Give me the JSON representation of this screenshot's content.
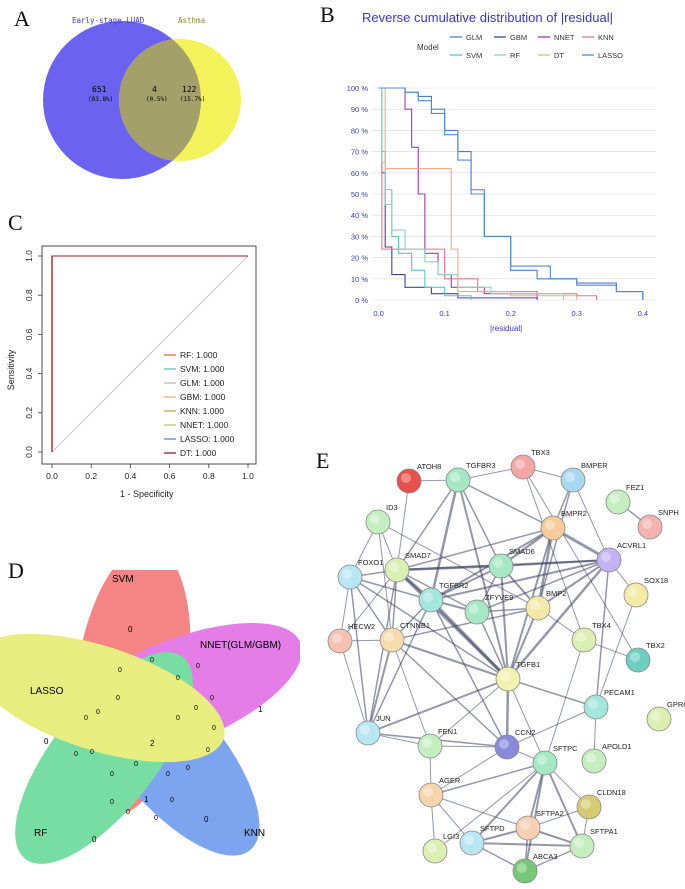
{
  "panel_labels": {
    "a": "A",
    "b": "B",
    "c": "C",
    "d": "D",
    "e": "E"
  },
  "colors": {
    "venn_left": "#6b63f0",
    "venn_right": "#f4f25a",
    "venn_overlap": "#a3a06a",
    "glm": "#4d7fd1",
    "gbm": "#4343a8",
    "nnet": "#a23caf",
    "knn": "#e6758f",
    "svm": "#5ec6c2",
    "rf": "#88d7b8",
    "dt": "#f4a98a",
    "lasso": "#4c8ad8",
    "roc_line": "#c0392b"
  },
  "venn2": {
    "left_title": "Early-stage LUAD",
    "right_title": "Asthma",
    "left_count": "651",
    "left_pct": "(83.8%)",
    "overlap_count": "4",
    "overlap_pct": "(0.5%)",
    "right_count": "122",
    "right_pct": "(15.7%)"
  },
  "chart_data": [
    {
      "id": "reverse_cumulative",
      "type": "line",
      "title": "Reverse cumulative distribution of |residual|",
      "xlabel": "|residual|",
      "ylabel": "",
      "legend_title": "Model",
      "legend": [
        "GLM",
        "GBM",
        "NNET",
        "KNN",
        "SVM",
        "RF",
        "DT",
        "LASSO"
      ],
      "x_ticks": [
        "0.0",
        "0.1",
        "0.2",
        "0.3",
        "0.4"
      ],
      "y_ticks": [
        "0 %",
        "10 %",
        "20 %",
        "30 %",
        "40 %",
        "50 %",
        "60 %",
        "70 %",
        "80 %",
        "90 %",
        "100 %"
      ],
      "xlim": [
        -0.01,
        0.42
      ],
      "ylim": [
        0,
        100
      ],
      "series": [
        {
          "name": "GLM",
          "x": [
            0,
            0.02,
            0.04,
            0.06,
            0.08,
            0.1,
            0.12,
            0.14,
            0.16,
            0.2,
            0.24,
            0.3,
            0.36,
            0.4
          ],
          "y": [
            100,
            100,
            98,
            96,
            90,
            80,
            70,
            52,
            30,
            14,
            10,
            8,
            4,
            0
          ]
        },
        {
          "name": "GBM",
          "x": [
            0,
            0.005,
            0.01,
            0.02,
            0.04,
            0.08,
            0.12,
            0.24
          ],
          "y": [
            100,
            60,
            25,
            12,
            6,
            3,
            1,
            0
          ]
        },
        {
          "name": "NNET",
          "x": [
            0,
            0.03,
            0.04,
            0.05,
            0.06,
            0.07,
            0.09,
            0.11,
            0.16,
            0.24
          ],
          "y": [
            100,
            100,
            90,
            72,
            50,
            22,
            12,
            6,
            3,
            0
          ]
        },
        {
          "name": "KNN",
          "x": [
            0,
            0.005,
            0.01,
            0.1,
            0.15,
            0.24,
            0.3,
            0.33
          ],
          "y": [
            100,
            24,
            24,
            10,
            4,
            3,
            2,
            0
          ]
        },
        {
          "name": "SVM",
          "x": [
            0,
            0.005,
            0.01,
            0.02,
            0.03,
            0.05,
            0.07,
            0.1,
            0.14
          ],
          "y": [
            100,
            70,
            52,
            30,
            22,
            14,
            6,
            2,
            0
          ]
        },
        {
          "name": "RF",
          "x": [
            0,
            0.005,
            0.01,
            0.02,
            0.04,
            0.07,
            0.09,
            0.12,
            0.17,
            0.28
          ],
          "y": [
            100,
            65,
            45,
            33,
            24,
            18,
            12,
            6,
            3,
            0
          ]
        },
        {
          "name": "DT",
          "x": [
            0,
            0.01,
            0.1,
            0.11,
            0.12,
            0.2,
            0.3
          ],
          "y": [
            100,
            62,
            62,
            24,
            4,
            2,
            0
          ]
        },
        {
          "name": "LASSO",
          "x": [
            0,
            0.02,
            0.04,
            0.06,
            0.08,
            0.1,
            0.12,
            0.14,
            0.16,
            0.2,
            0.26,
            0.3,
            0.36,
            0.4
          ],
          "y": [
            100,
            100,
            98,
            94,
            88,
            78,
            66,
            50,
            30,
            16,
            10,
            7,
            4,
            0
          ]
        }
      ]
    },
    {
      "id": "roc",
      "type": "line",
      "title": "",
      "xlabel": "1 - Specificity",
      "ylabel": "Sensitivity",
      "x_ticks": [
        "0.0",
        "0.2",
        "0.4",
        "0.6",
        "0.8",
        "1.0"
      ],
      "y_ticks": [
        "0.0",
        "0.2",
        "0.4",
        "0.6",
        "0.8",
        "1.0"
      ],
      "xlim": [
        0,
        1
      ],
      "ylim": [
        0,
        1
      ],
      "legend": [
        "RF: 1.000",
        "SVM: 1.000",
        "GLM: 1.000",
        "GBM: 1.000",
        "KNN: 1.000",
        "NNET: 1.000",
        "LASSO: 1.000",
        "DT: 1.000"
      ],
      "series": [
        {
          "name": "RF",
          "auc": 1.0,
          "x": [
            0,
            0,
            1
          ],
          "y": [
            0,
            1,
            1
          ]
        },
        {
          "name": "SVM",
          "auc": 1.0,
          "x": [
            0,
            0,
            1
          ],
          "y": [
            0,
            1,
            1
          ]
        },
        {
          "name": "GLM",
          "auc": 1.0,
          "x": [
            0,
            0,
            1
          ],
          "y": [
            0,
            1,
            1
          ]
        },
        {
          "name": "GBM",
          "auc": 1.0,
          "x": [
            0,
            0,
            1
          ],
          "y": [
            0,
            1,
            1
          ]
        },
        {
          "name": "KNN",
          "auc": 1.0,
          "x": [
            0,
            0,
            1
          ],
          "y": [
            0,
            1,
            1
          ]
        },
        {
          "name": "NNET",
          "auc": 1.0,
          "x": [
            0,
            0,
            1
          ],
          "y": [
            0,
            1,
            1
          ]
        },
        {
          "name": "LASSO",
          "auc": 1.0,
          "x": [
            0,
            0,
            1
          ],
          "y": [
            0,
            1,
            1
          ]
        },
        {
          "name": "DT",
          "auc": 1.0,
          "x": [
            0,
            0,
            1
          ],
          "y": [
            0,
            1,
            1
          ]
        }
      ],
      "reference_line": {
        "x": [
          0,
          1
        ],
        "y": [
          0,
          1
        ]
      }
    }
  ],
  "venn5": {
    "sets": [
      "SVM",
      "NNET(GLM/GBM)",
      "KNN",
      "RF",
      "LASSO"
    ],
    "center_value": "2",
    "svm_only": "0",
    "nnet_only": "1",
    "knn_only": "0",
    "rf_only": "0",
    "lasso_only": "0",
    "one_value": "1",
    "zero": "0"
  },
  "network": {
    "nodes": [
      "ATOH8",
      "TGFBR3",
      "TBX3",
      "BMPER",
      "FEZ1",
      "SNPH",
      "ID3",
      "BMPR2",
      "ACVRL1",
      "FOXO1",
      "SMAD7",
      "SMAD6",
      "TGFBR2",
      "ZFYVE9",
      "BMP2",
      "SOX18",
      "HECW2",
      "CTNNB1",
      "TBX4",
      "TBX2",
      "TGFB1",
      "PECAM1",
      "GPRC5A",
      "JUN",
      "FEN1",
      "CCN2",
      "SFTPC",
      "APOLD1",
      "AGER",
      "CLDN18",
      "SFTPA2",
      "LGI3",
      "SFTPD",
      "SFTPA1",
      "ABCA3"
    ]
  }
}
